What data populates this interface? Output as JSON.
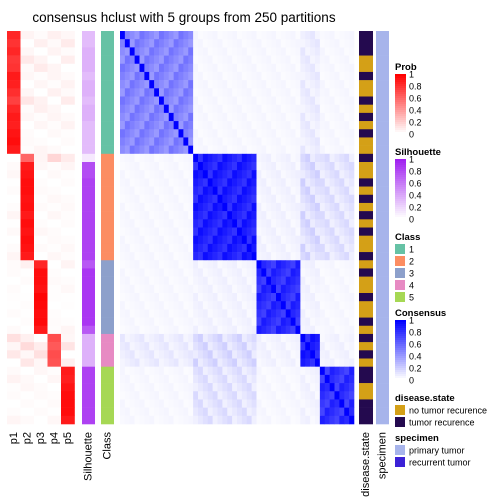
{
  "chart_data": {
    "type": "heatmap",
    "title": "consensus hclust with 5 groups from 250 partitions",
    "n_samples": 48,
    "prob_columns": [
      "p1",
      "p2",
      "p3",
      "p4",
      "p5"
    ],
    "silhouette_label": "Silhouette",
    "class_label": "Class",
    "sample_class": [
      1,
      1,
      1,
      1,
      1,
      1,
      1,
      1,
      1,
      1,
      1,
      1,
      1,
      1,
      1,
      2,
      2,
      2,
      2,
      2,
      2,
      2,
      2,
      2,
      2,
      2,
      2,
      2,
      3,
      3,
      3,
      3,
      3,
      3,
      3,
      3,
      3,
      4,
      4,
      4,
      4,
      5,
      5,
      5,
      5,
      5,
      5,
      5
    ],
    "sample_prob": [
      0.85,
      0.8,
      0.85,
      0.78,
      0.8,
      0.9,
      0.88,
      0.82,
      0.75,
      0.85,
      0.9,
      0.88,
      0.92,
      0.95,
      0.9,
      0.6,
      0.9,
      0.92,
      0.95,
      0.95,
      0.93,
      0.94,
      0.9,
      0.95,
      0.92,
      0.95,
      0.93,
      0.9,
      0.85,
      0.95,
      0.95,
      0.93,
      0.98,
      0.97,
      0.95,
      0.96,
      0.9,
      0.7,
      0.65,
      0.7,
      0.68,
      0.9,
      0.88,
      0.92,
      0.95,
      0.95,
      0.95,
      0.9
    ],
    "sample_silhouette": [
      0.3,
      0.3,
      0.35,
      0.35,
      0.35,
      0.3,
      0.35,
      0.35,
      0.3,
      0.35,
      0.35,
      0.3,
      0.3,
      0.3,
      0.3,
      0.1,
      0.8,
      0.8,
      0.85,
      0.85,
      0.85,
      0.85,
      0.85,
      0.85,
      0.85,
      0.85,
      0.85,
      0.85,
      0.75,
      0.9,
      0.9,
      0.9,
      0.9,
      0.9,
      0.9,
      0.9,
      0.75,
      0.35,
      0.35,
      0.35,
      0.35,
      0.85,
      0.85,
      0.85,
      0.85,
      0.85,
      0.85,
      0.85
    ],
    "disease_state": [
      1,
      1,
      1,
      0,
      0,
      1,
      0,
      0,
      1,
      0,
      1,
      0,
      1,
      0,
      0,
      1,
      0,
      0,
      1,
      0,
      1,
      0,
      1,
      0,
      1,
      0,
      0,
      1,
      0,
      1,
      0,
      0,
      1,
      0,
      0,
      1,
      0,
      1,
      0,
      1,
      0,
      1,
      1,
      0,
      0,
      1,
      1,
      1
    ],
    "specimen": [
      0,
      0,
      0,
      0,
      0,
      0,
      0,
      0,
      0,
      0,
      0,
      0,
      0,
      0,
      0,
      0,
      0,
      0,
      0,
      0,
      0,
      0,
      0,
      0,
      0,
      0,
      0,
      0,
      0,
      0,
      0,
      0,
      0,
      0,
      0,
      0,
      0,
      0,
      0,
      0,
      0,
      0,
      0,
      0,
      0,
      0,
      0,
      0
    ],
    "consensus_within": [
      0.55,
      0.95,
      0.9,
      0.95,
      0.88
    ],
    "consensus_between": [
      [
        1,
        1,
        0.05
      ],
      [
        2,
        3,
        0.05
      ],
      [
        2,
        4,
        0.15
      ],
      [
        2,
        5,
        0.12
      ],
      [
        3,
        4,
        0.05
      ],
      [
        4,
        5,
        0.05
      ],
      [
        1,
        4,
        0.08
      ]
    ],
    "annotation_labels": [
      "disease.state",
      "specimen"
    ],
    "legends": {
      "prob": {
        "title": "Prob",
        "ticks": [
          "1",
          "0.8",
          "0.6",
          "0.4",
          "0.2",
          "0"
        ]
      },
      "silhouette": {
        "title": "Silhouette",
        "ticks": [
          "1",
          "0.8",
          "0.6",
          "0.4",
          "0.2",
          "0"
        ]
      },
      "class": {
        "title": "Class",
        "items": [
          "1",
          "2",
          "3",
          "4",
          "5"
        ]
      },
      "consensus": {
        "title": "Consensus",
        "ticks": [
          "1",
          "0.8",
          "0.6",
          "0.4",
          "0.2",
          "0"
        ]
      },
      "disease_state": {
        "title": "disease.state",
        "items": [
          "no tumor recurence",
          "tumor recurence"
        ]
      },
      "specimen": {
        "title": "specimen",
        "items": [
          "primary tumor",
          "recurrent tumor"
        ]
      }
    },
    "colors": {
      "prob_high": "#ff0000",
      "silhouette_high": "#a020f0",
      "consensus_high": "#0000ff",
      "class": [
        "#66c2a5",
        "#fc8d62",
        "#8da0cb",
        "#e78ac3",
        "#a6d854"
      ],
      "disease_state": [
        "#d4a017",
        "#240a4f"
      ],
      "specimen": [
        "#a7b4eb",
        "#3b21d6"
      ]
    }
  }
}
